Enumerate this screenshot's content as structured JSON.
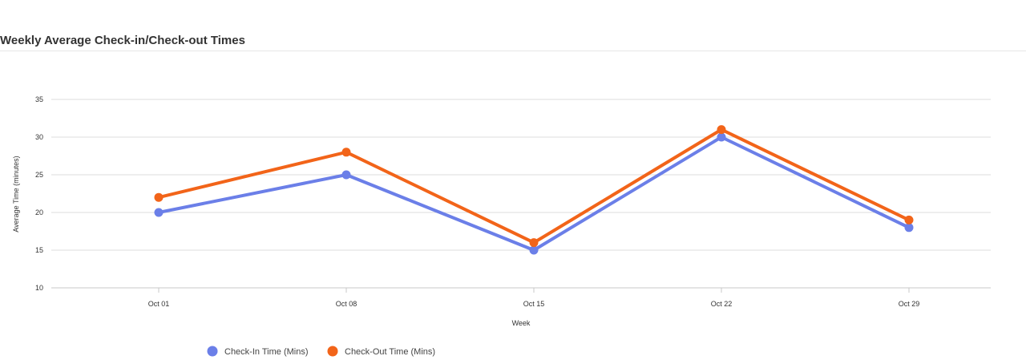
{
  "header": {
    "title": "Weekly Average Check-in/Check-out Times"
  },
  "chart_data": {
    "type": "line",
    "title": "",
    "xlabel": "Week",
    "ylabel": "Average Time (minutes)",
    "categories": [
      "Oct 01",
      "Oct 08",
      "Oct 15",
      "Oct 22",
      "Oct 29"
    ],
    "ylim": [
      10,
      35
    ],
    "yticks": [
      10,
      15,
      20,
      25,
      30,
      35
    ],
    "grid": true,
    "legend_position": "bottom-left",
    "series": [
      {
        "name": "Check-In Time (Mins)",
        "values": [
          20,
          25,
          15,
          30,
          18
        ],
        "color": "#6b7fe8"
      },
      {
        "name": "Check-Out Time (Mins)",
        "values": [
          22,
          28,
          16,
          31,
          19
        ],
        "color": "#f26419"
      }
    ]
  }
}
